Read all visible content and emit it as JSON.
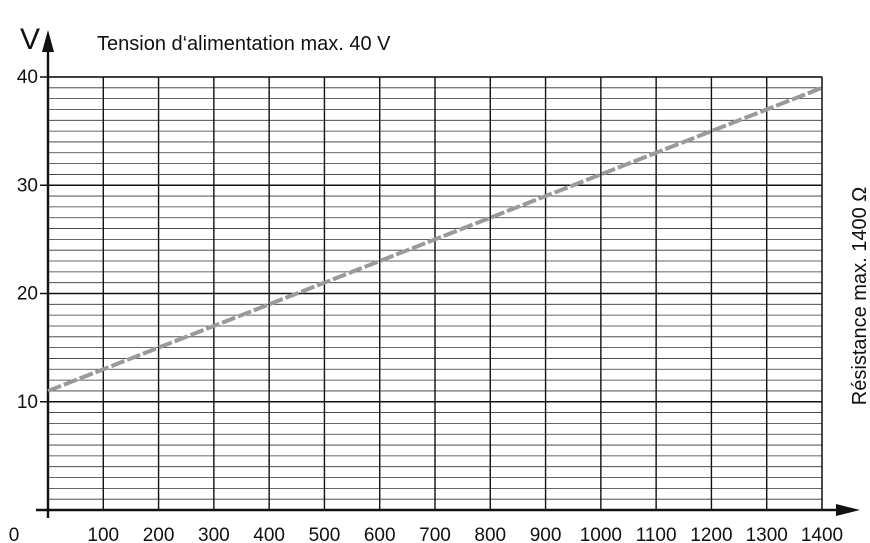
{
  "chart_data": {
    "type": "line",
    "title": "Tension d‘alimentation max. 40 V",
    "ylabel": "V",
    "side_label": "Résistance max. 1400 Ω",
    "origin_label": "0",
    "x_ticks": [
      "100",
      "200",
      "300",
      "400",
      "500",
      "600",
      "700",
      "800",
      "900",
      "1000",
      "1100",
      "1200",
      "1300",
      "1400"
    ],
    "y_ticks": [
      "10",
      "20",
      "30",
      "40"
    ],
    "xlim": [
      0,
      1400
    ],
    "ylim": [
      0,
      40
    ],
    "grid": true,
    "line_color": "#9a9a9a",
    "line_style": "dashed",
    "series": [
      {
        "x": [
          0,
          1400
        ],
        "y": [
          11,
          39
        ]
      }
    ]
  }
}
